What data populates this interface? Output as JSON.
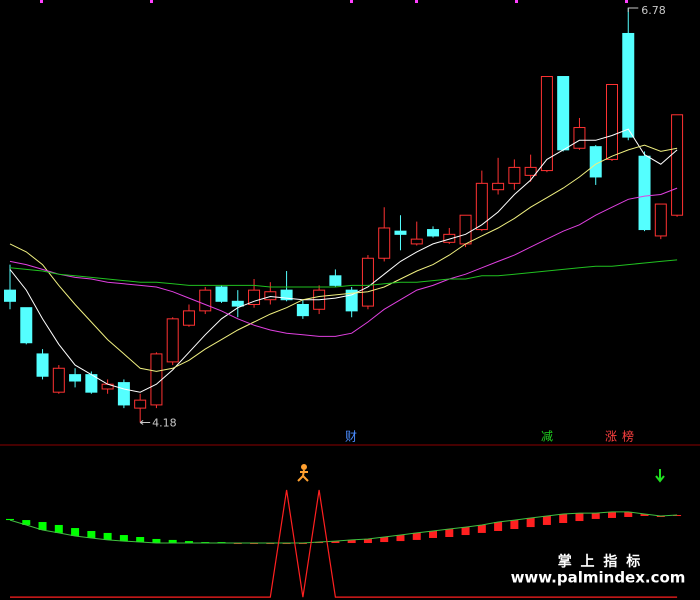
{
  "chart_data": [
    {
      "type": "candlestick",
      "open": [
        5.01,
        4.9,
        4.61,
        4.37,
        4.48,
        4.48,
        4.39,
        4.43,
        4.27,
        4.29,
        4.56,
        4.79,
        4.88,
        5.03,
        4.94,
        4.92,
        4.95,
        5.01,
        4.92,
        4.89,
        5.1,
        5.01,
        4.91,
        5.21,
        5.38,
        5.3,
        5.39,
        5.31,
        5.3,
        5.39,
        5.64,
        5.68,
        5.73,
        5.76,
        6.35,
        5.9,
        5.91,
        5.83,
        6.62,
        5.85,
        5.35,
        5.48
      ],
      "high": [
        5.17,
        4.9,
        4.64,
        4.54,
        4.52,
        4.5,
        4.45,
        4.45,
        4.36,
        4.62,
        4.84,
        4.92,
        5.03,
        5.04,
        5.01,
        5.08,
        5.06,
        5.13,
        4.95,
        5.04,
        5.14,
        5.03,
        5.23,
        5.53,
        5.48,
        5.44,
        5.41,
        5.4,
        5.48,
        5.76,
        5.84,
        5.83,
        5.86,
        6.35,
        6.35,
        6.09,
        5.92,
        6.3,
        6.78,
        5.88,
        5.55,
        6.11
      ],
      "low": [
        4.89,
        4.67,
        4.45,
        4.36,
        4.4,
        4.36,
        4.36,
        4.27,
        4.18,
        4.27,
        4.54,
        4.78,
        4.86,
        4.93,
        4.84,
        4.9,
        4.92,
        4.94,
        4.83,
        4.86,
        5.03,
        4.84,
        4.89,
        5.19,
        5.26,
        5.29,
        5.34,
        5.3,
        5.28,
        5.38,
        5.61,
        5.64,
        5.69,
        5.75,
        5.88,
        5.89,
        5.67,
        5.82,
        5.95,
        5.38,
        5.33,
        5.47
      ],
      "close": [
        4.94,
        4.68,
        4.47,
        4.52,
        4.44,
        4.37,
        4.42,
        4.29,
        4.32,
        4.61,
        4.83,
        4.88,
        5.01,
        4.94,
        4.91,
        5.01,
        5.0,
        4.95,
        4.85,
        5.01,
        5.04,
        4.88,
        5.21,
        5.4,
        5.36,
        5.33,
        5.35,
        5.36,
        5.48,
        5.68,
        5.68,
        5.78,
        5.78,
        6.35,
        5.89,
        6.03,
        5.72,
        6.3,
        5.97,
        5.39,
        5.55,
        6.11
      ],
      "up_color": "#ff3232",
      "down_color": "#54ffff",
      "ylim": [
        4.07,
        6.83
      ],
      "high_label": 6.78,
      "low_label": 4.18,
      "series": [
        {
          "color": "#ffffff",
          "values": [
            5.14,
            5.01,
            4.83,
            4.67,
            4.54,
            4.48,
            4.42,
            4.39,
            4.37,
            4.42,
            4.51,
            4.62,
            4.73,
            4.83,
            4.9,
            4.94,
            4.97,
            4.96,
            4.95,
            4.95,
            4.96,
            4.98,
            5.03,
            5.11,
            5.19,
            5.25,
            5.3,
            5.33,
            5.36,
            5.42,
            5.5,
            5.61,
            5.7,
            5.83,
            5.89,
            5.95,
            5.95,
            5.98,
            6.02,
            5.86,
            5.8,
            5.89
          ]
        },
        {
          "color": "#f0f080",
          "values": [
            5.3,
            5.25,
            5.17,
            5.04,
            4.92,
            4.81,
            4.7,
            4.61,
            4.52,
            4.5,
            4.52,
            4.57,
            4.64,
            4.7,
            4.76,
            4.81,
            4.86,
            4.9,
            4.95,
            4.97,
            4.98,
            4.99,
            5.0,
            5.03,
            5.08,
            5.13,
            5.17,
            5.23,
            5.3,
            5.35,
            5.4,
            5.46,
            5.53,
            5.59,
            5.65,
            5.72,
            5.8,
            5.85,
            5.89,
            5.92,
            5.88,
            5.9
          ]
        },
        {
          "color": "#e040e0",
          "values": [
            5.19,
            5.17,
            5.14,
            5.11,
            5.09,
            5.08,
            5.06,
            5.05,
            5.04,
            5.03,
            5.0,
            4.96,
            4.92,
            4.88,
            4.83,
            4.79,
            4.76,
            4.74,
            4.73,
            4.72,
            4.72,
            4.74,
            4.81,
            4.89,
            4.95,
            5.01,
            5.04,
            5.08,
            5.11,
            5.15,
            5.19,
            5.23,
            5.28,
            5.33,
            5.38,
            5.42,
            5.48,
            5.53,
            5.58,
            5.6,
            5.61,
            5.65
          ]
        },
        {
          "color": "#20c020",
          "values": [
            5.15,
            5.14,
            5.13,
            5.11,
            5.1,
            5.09,
            5.08,
            5.07,
            5.06,
            5.06,
            5.05,
            5.04,
            5.04,
            5.04,
            5.04,
            5.04,
            5.03,
            5.03,
            5.03,
            5.03,
            5.03,
            5.04,
            5.04,
            5.05,
            5.06,
            5.06,
            5.07,
            5.08,
            5.08,
            5.1,
            5.1,
            5.11,
            5.12,
            5.13,
            5.14,
            5.15,
            5.16,
            5.16,
            5.17,
            5.18,
            5.19,
            5.2
          ]
        }
      ],
      "tags": [
        "财",
        "减",
        "涨",
        "榜"
      ]
    },
    {
      "type": "oscillator",
      "fast": [
        57.1,
        53.6,
        50.0,
        47.9,
        45.7,
        44.3,
        42.9,
        42.1,
        41.4,
        40.7,
        40.7,
        40.7,
        40.7,
        40.7,
        40.7,
        40.7,
        40.7,
        40.7,
        40.7,
        41.4,
        42.1,
        42.9,
        43.6,
        45.0,
        46.4,
        47.9,
        49.3,
        50.7,
        52.1,
        53.6,
        55.7,
        57.1,
        58.6,
        60.0,
        61.4,
        62.1,
        62.1,
        62.9,
        62.9,
        61.4,
        60.0,
        60.7
      ],
      "slow": [
        57.9,
        57.1,
        55.7,
        53.6,
        51.4,
        49.3,
        47.9,
        46.4,
        45.0,
        43.6,
        42.9,
        42.1,
        41.4,
        41.4,
        40.7,
        40.7,
        40.7,
        40.7,
        40.7,
        40.7,
        40.7,
        40.7,
        40.7,
        41.4,
        42.1,
        42.9,
        44.3,
        45.0,
        46.4,
        47.9,
        49.3,
        50.7,
        52.1,
        53.6,
        55.0,
        56.4,
        57.9,
        58.6,
        59.3,
        60.0,
        60.0,
        60.0
      ],
      "signal": [
        2.1,
        2.1,
        2.1,
        2.1,
        2.1,
        2.1,
        2.1,
        2.1,
        2.1,
        2.1,
        2.1,
        2.1,
        2.1,
        2.1,
        2.1,
        2.1,
        2.1,
        78.6,
        2.1,
        78.6,
        2.1,
        2.1,
        2.1,
        2.1,
        2.1,
        2.1,
        2.1,
        2.1,
        2.1,
        2.1,
        2.1,
        2.1,
        2.1,
        2.1,
        2.1,
        2.1,
        2.1,
        2.1,
        2.1,
        2.1,
        2.1,
        2.1
      ],
      "rise_color": "#ff2020",
      "fall_color": "#00ff00",
      "signal_color": "#ff2020",
      "ylim": [
        0,
        100
      ]
    }
  ],
  "watermark": {
    "title": "掌 上 指 标",
    "url": "www.palmindex.com"
  }
}
